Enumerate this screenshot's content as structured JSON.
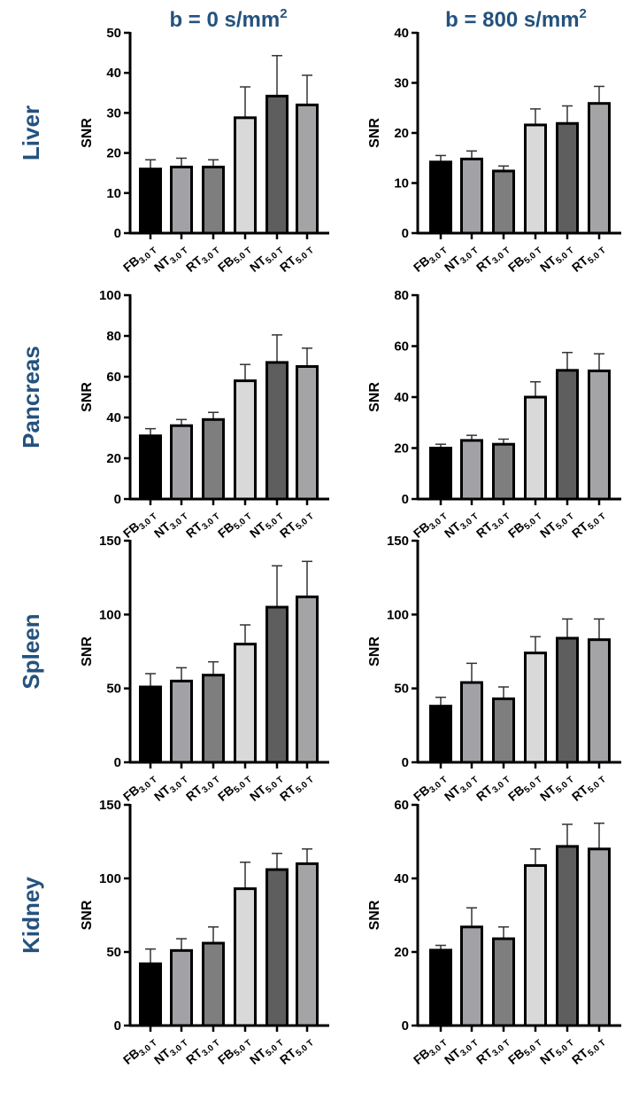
{
  "chart_data": {
    "type": "bar",
    "column_titles": [
      {
        "text": "b = 0 s/mm",
        "sup": "2"
      },
      {
        "text": "b = 800 s/mm",
        "sup": "2"
      }
    ],
    "row_labels": [
      "Liver",
      "Pancreas",
      "Spleen",
      "Kidney"
    ],
    "ylabel": "SNR",
    "categories": [
      {
        "main": "FB",
        "sub": "3.0 T"
      },
      {
        "main": "NT",
        "sub": "3.0 T"
      },
      {
        "main": "RT",
        "sub": "3.0 T"
      },
      {
        "main": "FB",
        "sub": "5.0 T"
      },
      {
        "main": "NT",
        "sub": "5.0 T"
      },
      {
        "main": "RT",
        "sub": "5.0 T"
      }
    ],
    "bar_colors": [
      "#000000",
      "#a2a2a6",
      "#7e7e7e",
      "#d9d9d9",
      "#5e5e5e",
      "#a4a4a6"
    ],
    "grid": false,
    "panels": [
      {
        "row": "Liver",
        "column": "b = 0 s/mm2",
        "ylim": [
          0,
          50
        ],
        "yticks": [
          0,
          10,
          20,
          30,
          40,
          50
        ],
        "values": [
          16,
          16.5,
          16.5,
          28.8,
          34.2,
          32
        ],
        "error_upper": [
          18.3,
          18.7,
          18.3,
          36.5,
          44.3,
          39.4
        ]
      },
      {
        "row": "Liver",
        "column": "b = 800 s/mm2",
        "ylim": [
          0,
          40
        ],
        "yticks": [
          0,
          10,
          20,
          30,
          40
        ],
        "values": [
          14.2,
          14.8,
          12.4,
          21.6,
          21.9,
          25.9
        ],
        "error_upper": [
          15.5,
          16.4,
          13.4,
          24.8,
          25.4,
          29.3
        ]
      },
      {
        "row": "Pancreas",
        "column": "b = 0 s/mm2",
        "ylim": [
          0,
          100
        ],
        "yticks": [
          0,
          20,
          40,
          60,
          80,
          100
        ],
        "values": [
          31,
          36,
          39,
          58,
          67,
          65
        ],
        "error_upper": [
          34.5,
          39,
          42.5,
          66,
          80.5,
          74
        ]
      },
      {
        "row": "Pancreas",
        "column": "b = 800 s/mm2",
        "ylim": [
          0,
          80
        ],
        "yticks": [
          0,
          20,
          40,
          60,
          80
        ],
        "values": [
          20,
          23,
          21.5,
          40,
          50.5,
          50.3
        ],
        "error_upper": [
          21.5,
          25,
          23.5,
          46,
          57.5,
          57
        ]
      },
      {
        "row": "Spleen",
        "column": "b = 0 s/mm2",
        "ylim": [
          0,
          150
        ],
        "yticks": [
          0,
          50,
          100,
          150
        ],
        "values": [
          51,
          55,
          59,
          80,
          105,
          112
        ],
        "error_upper": [
          60,
          64,
          68,
          93,
          133,
          136
        ]
      },
      {
        "row": "Spleen",
        "column": "b = 800 s/mm2",
        "ylim": [
          0,
          150
        ],
        "yticks": [
          0,
          50,
          100,
          150
        ],
        "values": [
          38,
          54,
          43,
          74,
          84,
          83
        ],
        "error_upper": [
          44,
          67,
          51,
          85,
          97,
          97
        ]
      },
      {
        "row": "Kidney",
        "column": "b = 0 s/mm2",
        "ylim": [
          0,
          150
        ],
        "yticks": [
          0,
          50,
          100,
          150
        ],
        "values": [
          42,
          51,
          56,
          93,
          106,
          110
        ],
        "error_upper": [
          52,
          59,
          67,
          111,
          117,
          120
        ]
      },
      {
        "row": "Kidney",
        "column": "b = 800 s/mm2",
        "ylim": [
          0,
          60
        ],
        "yticks": [
          0,
          20,
          40,
          60
        ],
        "values": [
          20.5,
          26.8,
          23.6,
          43.5,
          48.7,
          48
        ],
        "error_upper": [
          21.8,
          32,
          26.8,
          48,
          54.7,
          55
        ]
      }
    ]
  }
}
